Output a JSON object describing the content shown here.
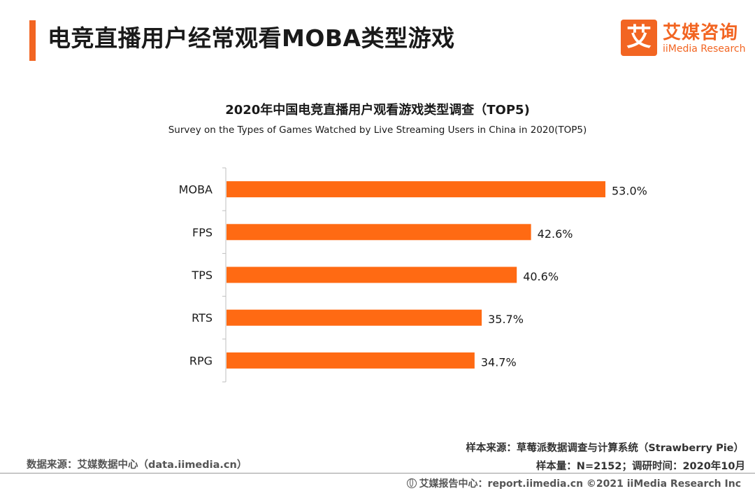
{
  "header": {
    "title": "电竞直播用户经常观看MOBA类型游戏",
    "logo_mark": "艾",
    "logo_cn": "艾媒咨询",
    "logo_en": "iiMedia Research"
  },
  "chart_data": {
    "type": "bar",
    "orientation": "horizontal",
    "title": "2020年中国电竞直播用户观看游戏类型调查（TOP5)",
    "subtitle": "Survey on the Types of Games Watched by Live Streaming Users  in China in 2020(TOP5)",
    "categories": [
      "MOBA",
      "FPS",
      "TPS",
      "RTS",
      "RPG"
    ],
    "values": [
      53.0,
      42.6,
      40.6,
      35.7,
      34.7
    ],
    "value_labels": [
      "53.0%",
      "42.6%",
      "40.6%",
      "35.7%",
      "34.7%"
    ],
    "unit": "%",
    "bar_color": "#ff6a13",
    "xlim": [
      0,
      53.0
    ],
    "grid": false,
    "legend": "none"
  },
  "notes": {
    "sample_source": "样本来源：草莓派数据调查与计算系统（Strawberry Pie）",
    "sample_size": "样本量：N=2152；调研时间：2020年10月",
    "data_source": "数据来源：艾媒数据中心（data.iimedia.cn）"
  },
  "footer": {
    "text": "艾媒报告中心：report.iimedia.cn ©2021  iiMedia Research  Inc",
    "icon": "globe-icon"
  },
  "colors": {
    "accent": "#f26522",
    "bar": "#ff6a13",
    "text": "#1a1a1a"
  }
}
